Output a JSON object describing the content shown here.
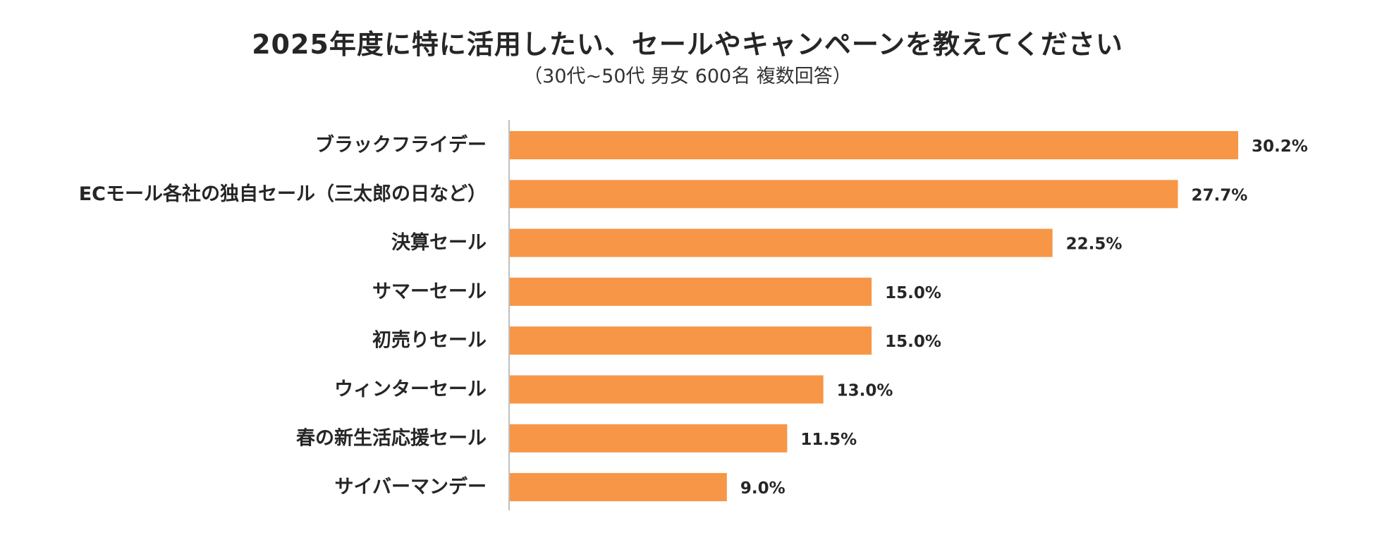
{
  "chart_data": {
    "type": "bar",
    "orientation": "horizontal",
    "title": "2025年度に特に活用したい、セールやキャンペーンを教えてください",
    "subtitle": "（30代~50代 男女 600名 複数回答）",
    "categories": [
      "ブラックフライデー",
      "ECモール各社の独自セール（三太郎の日など）",
      "決算セール",
      "サマーセール",
      "初売りセール",
      "ウィンターセール",
      "春の新生活応援セール",
      "サイバーマンデー"
    ],
    "values": [
      30.2,
      27.7,
      22.5,
      15.0,
      15.0,
      13.0,
      11.5,
      9.0
    ],
    "value_labels": [
      "30.2%",
      "27.7%",
      "22.5%",
      "15.0%",
      "15.0%",
      "13.0%",
      "11.5%",
      "9.0%"
    ],
    "unit": "%",
    "xlim": [
      0,
      30.2
    ],
    "grid": false,
    "legend": "none",
    "colors": {
      "bar": "#F79646",
      "axis": "#BFBFBF",
      "text": "#262626"
    }
  }
}
